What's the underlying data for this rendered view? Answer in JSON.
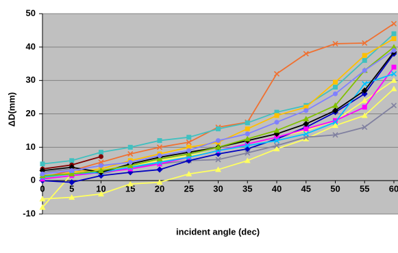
{
  "chart_data": {
    "type": "line",
    "y_label": "ΔD(mm)",
    "x_label": "incident angle (dec)",
    "x": [
      0,
      5,
      10,
      15,
      20,
      25,
      30,
      35,
      40,
      45,
      50,
      55,
      60
    ],
    "xlim": [
      0,
      60
    ],
    "xticks": [
      0,
      5,
      10,
      15,
      20,
      25,
      30,
      35,
      40,
      45,
      50,
      55,
      60
    ],
    "ylim": [
      -10,
      50
    ],
    "yticks": [
      -10,
      0,
      10,
      20,
      30,
      40,
      50
    ],
    "grid": true,
    "series": [
      {
        "color": "#f07030",
        "marker": "x",
        "values": [
          1,
          3,
          5.5,
          8,
          10,
          11.5,
          16,
          17.5,
          32,
          38,
          41,
          41.2,
          47
        ]
      },
      {
        "color": "#40c0c0",
        "marker": "square",
        "values": [
          5,
          6,
          8.5,
          10,
          12,
          13,
          15.5,
          17.3,
          20.5,
          22.5,
          28,
          36,
          44
        ]
      },
      {
        "color": "#800000",
        "marker": "circle",
        "values": [
          3.5,
          4.7,
          7.2,
          null,
          null,
          null,
          null,
          null,
          null,
          null,
          null,
          null,
          null
        ]
      },
      {
        "color": "#ffff60",
        "marker": "triangle",
        "values": [
          -5.5,
          -5,
          -4,
          -1,
          -0.5,
          2,
          3.3,
          6,
          9.5,
          12.5,
          16.5,
          19.5,
          27.5
        ]
      },
      {
        "color": "#ffff60",
        "marker": "triangle",
        "values": [
          -8,
          2,
          3,
          4.5,
          6,
          7.5,
          9,
          11,
          13,
          15,
          18,
          24,
          30
        ]
      },
      {
        "color": "#8080a0",
        "marker": "x",
        "values": [
          2.5,
          3.5,
          2,
          4,
          5,
          6,
          6.3,
          8.3,
          10.5,
          13,
          13.7,
          16,
          22.5
        ]
      },
      {
        "color": "#0000c0",
        "marker": "diamond",
        "values": [
          0,
          -0.5,
          1.5,
          2.5,
          3.3,
          6,
          8,
          9.5,
          12.5,
          16,
          20.5,
          26,
          38
        ]
      },
      {
        "color": "#ffc000",
        "marker": "square",
        "values": [
          0.5,
          2.5,
          3.5,
          6,
          8,
          10,
          11.5,
          15.5,
          19.5,
          22,
          29.5,
          37.5,
          42.5
        ]
      },
      {
        "color": "#ff00ff",
        "marker": "square",
        "values": [
          0.5,
          1.5,
          2.5,
          3.5,
          5,
          7,
          9,
          11,
          13,
          15.5,
          18,
          22,
          34
        ]
      },
      {
        "color": "#00c0ff",
        "marker": "x",
        "values": [
          1,
          2,
          2.5,
          4,
          5.5,
          7,
          9,
          10.5,
          12,
          14,
          17.5,
          29,
          32
        ]
      },
      {
        "color": "#000000",
        "marker": "diamond",
        "values": [
          3,
          4,
          2.5,
          5,
          7,
          8.5,
          10,
          12,
          14,
          17,
          21,
          27,
          38.5
        ]
      },
      {
        "color": "#80c000",
        "marker": "triangle",
        "values": [
          1.5,
          2,
          3,
          4.5,
          6.5,
          8,
          10,
          12.5,
          15,
          18.5,
          22.5,
          33,
          40
        ]
      },
      {
        "color": "#8080ff",
        "marker": "circle",
        "values": [
          2,
          3,
          4.5,
          5.5,
          7.5,
          9,
          12,
          14,
          17.5,
          21,
          26,
          33,
          39
        ]
      }
    ]
  }
}
